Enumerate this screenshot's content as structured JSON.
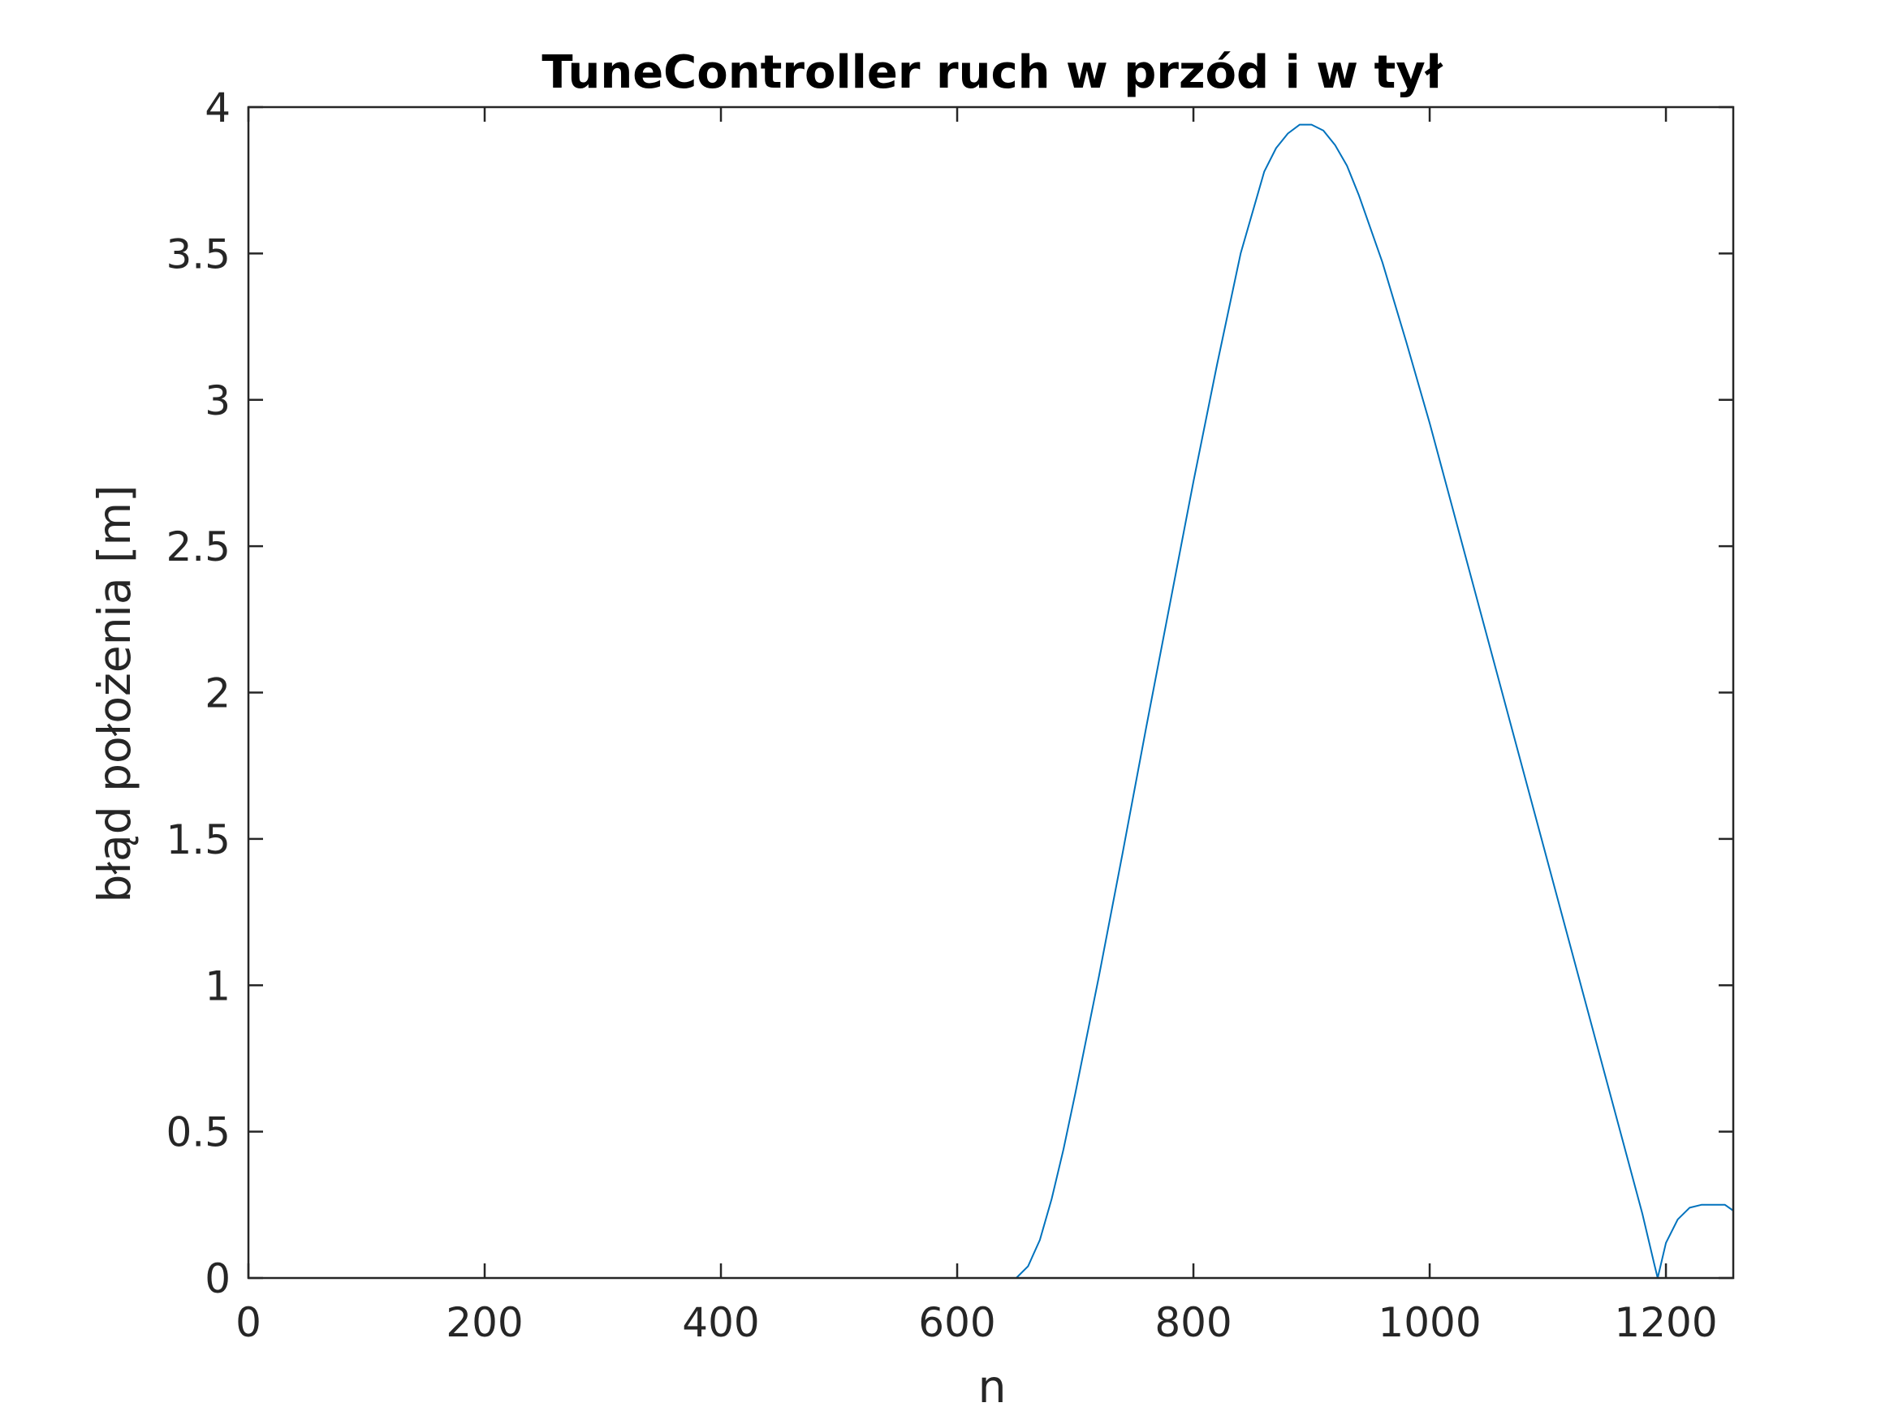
{
  "chart_data": {
    "type": "line",
    "title": "TuneController ruch w przód i w tył",
    "xlabel": "n",
    "ylabel": "błąd położenia [m]",
    "xlim": [
      0,
      1257
    ],
    "ylim": [
      0,
      4
    ],
    "xticks": [
      0,
      200,
      400,
      600,
      800,
      1000,
      1200
    ],
    "xtick_labels": [
      "0",
      "200",
      "400",
      "600",
      "800",
      "1000",
      "1200"
    ],
    "yticks": [
      0,
      0.5,
      1,
      1.5,
      2,
      2.5,
      3,
      3.5,
      4
    ],
    "ytick_labels": [
      "0",
      "0.5",
      "1",
      "1.5",
      "2",
      "2.5",
      "3",
      "3.5",
      "4"
    ],
    "grid": false,
    "box": true,
    "series": [
      {
        "color": "#0072bd",
        "x": [
          0,
          100,
          200,
          300,
          400,
          500,
          600,
          650,
          660,
          670,
          680,
          690,
          700,
          720,
          740,
          760,
          780,
          800,
          820,
          840,
          860,
          870,
          880,
          890,
          900,
          910,
          920,
          930,
          940,
          960,
          980,
          1000,
          1020,
          1040,
          1060,
          1080,
          1100,
          1120,
          1140,
          1160,
          1180,
          1190,
          1193,
          1200,
          1210,
          1220,
          1230,
          1240,
          1250,
          1257
        ],
        "y": [
          0,
          0,
          0,
          0,
          0,
          0,
          0,
          0,
          0.04,
          0.13,
          0.27,
          0.44,
          0.63,
          1.03,
          1.45,
          1.88,
          2.3,
          2.72,
          3.12,
          3.5,
          3.78,
          3.86,
          3.91,
          3.94,
          3.94,
          3.92,
          3.87,
          3.8,
          3.7,
          3.47,
          3.2,
          2.92,
          2.62,
          2.32,
          2.02,
          1.72,
          1.42,
          1.12,
          0.82,
          0.52,
          0.22,
          0.05,
          0.0,
          0.12,
          0.2,
          0.24,
          0.25,
          0.25,
          0.25,
          0.23
        ]
      }
    ]
  }
}
